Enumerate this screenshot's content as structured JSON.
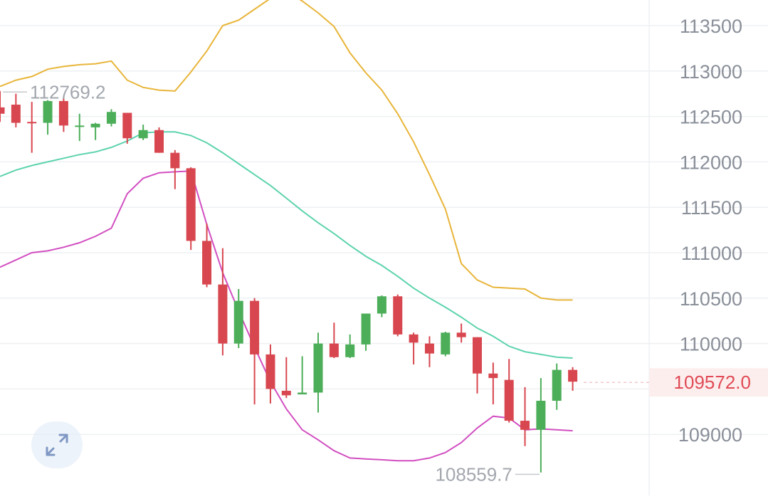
{
  "chart_data": {
    "type": "candlestick",
    "y_ticks": [
      113500,
      113000,
      112500,
      112000,
      111500,
      111000,
      110500,
      110000,
      109000
    ],
    "ylim": [
      108450,
      113800
    ],
    "grid": true,
    "current_price": {
      "value": 109572.0,
      "label": "109572.0",
      "color": "#e04b55"
    },
    "high_label": {
      "value": 112769.2,
      "label": "112769.2"
    },
    "low_label": {
      "value": 108559.7,
      "label": "108559.7"
    },
    "candles": [
      {
        "o": 112600,
        "h": 112780,
        "l": 112440,
        "c": 112530
      },
      {
        "o": 112630,
        "h": 112750,
        "l": 112380,
        "c": 112430
      },
      {
        "o": 112440,
        "h": 112660,
        "l": 112100,
        "c": 112430
      },
      {
        "o": 112430,
        "h": 112680,
        "l": 112300,
        "c": 112670
      },
      {
        "o": 112670,
        "h": 112700,
        "l": 112330,
        "c": 112400
      },
      {
        "o": 112400,
        "h": 112530,
        "l": 112230,
        "c": 112400
      },
      {
        "o": 112380,
        "h": 112430,
        "l": 112240,
        "c": 112420
      },
      {
        "o": 112420,
        "h": 112580,
        "l": 112390,
        "c": 112550
      },
      {
        "o": 112540,
        "h": 112540,
        "l": 112200,
        "c": 112260
      },
      {
        "o": 112260,
        "h": 112410,
        "l": 112240,
        "c": 112350
      },
      {
        "o": 112350,
        "h": 112380,
        "l": 112100,
        "c": 112100
      },
      {
        "o": 112100,
        "h": 112130,
        "l": 111700,
        "c": 111930
      },
      {
        "o": 111930,
        "h": 111940,
        "l": 111030,
        "c": 111130
      },
      {
        "o": 111130,
        "h": 111320,
        "l": 110620,
        "c": 110650
      },
      {
        "o": 110650,
        "h": 111050,
        "l": 109870,
        "c": 110000
      },
      {
        "o": 110000,
        "h": 110600,
        "l": 109950,
        "c": 110470
      },
      {
        "o": 110470,
        "h": 110500,
        "l": 109330,
        "c": 109880
      },
      {
        "o": 109880,
        "h": 109990,
        "l": 109340,
        "c": 109500
      },
      {
        "o": 109480,
        "h": 109850,
        "l": 109400,
        "c": 109430
      },
      {
        "o": 109440,
        "h": 109860,
        "l": 109450,
        "c": 109460
      },
      {
        "o": 109460,
        "h": 110120,
        "l": 109240,
        "c": 110000
      },
      {
        "o": 110000,
        "h": 110230,
        "l": 109840,
        "c": 109850
      },
      {
        "o": 109850,
        "h": 110100,
        "l": 109840,
        "c": 109990
      },
      {
        "o": 109990,
        "h": 110330,
        "l": 109920,
        "c": 110330
      },
      {
        "o": 110330,
        "h": 110530,
        "l": 110290,
        "c": 110520
      },
      {
        "o": 110520,
        "h": 110540,
        "l": 110080,
        "c": 110100
      },
      {
        "o": 110100,
        "h": 110120,
        "l": 109770,
        "c": 110010
      },
      {
        "o": 110000,
        "h": 110080,
        "l": 109740,
        "c": 109890
      },
      {
        "o": 109880,
        "h": 110130,
        "l": 109860,
        "c": 110120
      },
      {
        "o": 110120,
        "h": 110220,
        "l": 110010,
        "c": 110070
      },
      {
        "o": 110070,
        "h": 110070,
        "l": 109450,
        "c": 109670
      },
      {
        "o": 109670,
        "h": 109790,
        "l": 109330,
        "c": 109620
      },
      {
        "o": 109600,
        "h": 109830,
        "l": 109130,
        "c": 109150
      },
      {
        "o": 109150,
        "h": 109520,
        "l": 108870,
        "c": 109050
      },
      {
        "o": 109050,
        "h": 109620,
        "l": 108580,
        "c": 109370
      },
      {
        "o": 109370,
        "h": 109780,
        "l": 109270,
        "c": 109710
      },
      {
        "o": 109710,
        "h": 109740,
        "l": 109480,
        "c": 109580
      }
    ],
    "series": [
      {
        "color": "#e8b53a",
        "values": [
          112830,
          112900,
          112940,
          113020,
          113050,
          113070,
          113080,
          113110,
          112900,
          112820,
          112790,
          112780,
          112990,
          113220,
          113500,
          113560,
          113680,
          113800,
          113880,
          113770,
          113640,
          113490,
          113200,
          112980,
          112790,
          112530,
          112220,
          111860,
          111480,
          110880,
          110700,
          110620,
          110610,
          110600,
          110500,
          110480,
          110480
        ]
      },
      {
        "color": "#5dd3ae",
        "values": [
          111840,
          111910,
          111960,
          112000,
          112040,
          112080,
          112110,
          112160,
          112230,
          112320,
          112330,
          112330,
          112290,
          112210,
          112100,
          111980,
          111860,
          111740,
          111600,
          111460,
          111330,
          111210,
          111080,
          110960,
          110860,
          110740,
          110610,
          110500,
          110400,
          110290,
          110170,
          110080,
          109970,
          109910,
          109880,
          109850,
          109840
        ]
      },
      {
        "color": "#d24fc1",
        "values": [
          110840,
          110920,
          111000,
          111020,
          111060,
          111110,
          111180,
          111270,
          111650,
          111820,
          111880,
          111890,
          111900,
          111310,
          110780,
          110360,
          109960,
          109580,
          109280,
          109050,
          108940,
          108820,
          108740,
          108730,
          108720,
          108710,
          108710,
          108740,
          108800,
          108910,
          109070,
          109200,
          109180,
          109050,
          109060,
          109050,
          109040
        ]
      }
    ]
  },
  "icons": {
    "expand": "expand-arrows-icon"
  }
}
